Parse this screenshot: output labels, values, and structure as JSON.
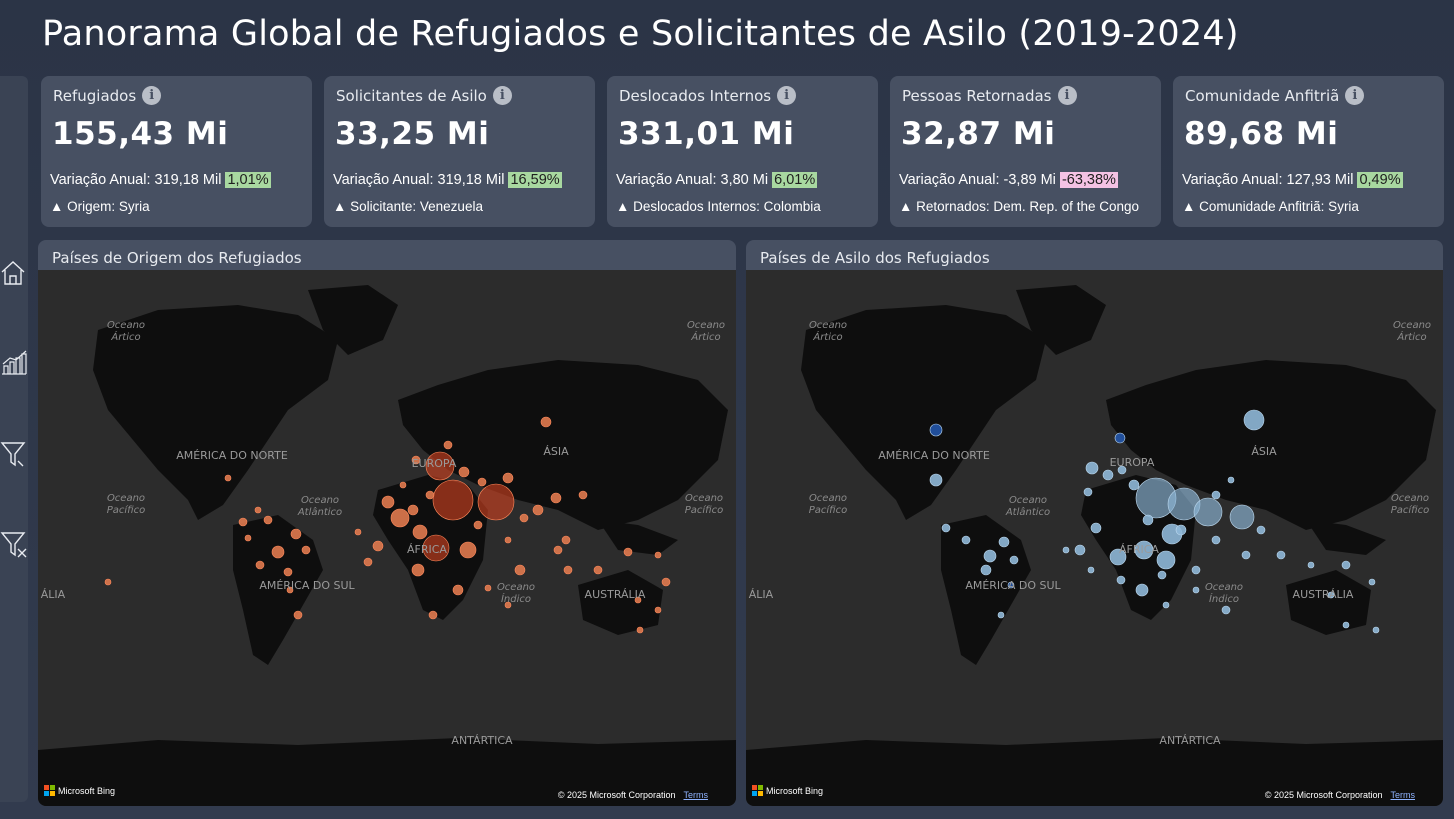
{
  "page": {
    "title": "Panorama Global de Refugiados e Solicitantes de Asilo (2019-2024)"
  },
  "kpis": [
    {
      "title": "Refugiados",
      "value": "155,43 Mi",
      "var_label": "Variação Anual: 319,18 Mil",
      "pct": "1,01%",
      "pct_type": "positive",
      "top_label": "▲ Origem: Syria"
    },
    {
      "title": "Solicitantes de Asilo",
      "value": "33,25 Mi",
      "var_label": "Variação Anual: 319,18 Mil",
      "pct": "16,59%",
      "pct_type": "positive",
      "top_label": "▲ Solicitante: Venezuela"
    },
    {
      "title": "Deslocados Internos",
      "value": "331,01 Mi",
      "var_label": "Variação Anual: 3,80 Mi",
      "pct": "6,01%",
      "pct_type": "positive",
      "top_label": "▲ Deslocados Internos: Colombia"
    },
    {
      "title": "Pessoas Retornadas",
      "value": "32,87 Mi",
      "var_label": "Variação Anual: -3,89 Mi",
      "pct": "-63,38%",
      "pct_type": "negative",
      "top_label": "▲ Retornados: Dem. Rep. of the Congo"
    },
    {
      "title": "Comunidade Anfitriã",
      "value": "89,68 Mi",
      "var_label": "Variação Anual: 127,93 Mil",
      "pct": "0,49%",
      "pct_type": "positive",
      "top_label": "▲ Comunidade Anfitriã: Syria"
    }
  ],
  "maps": [
    {
      "title": "Países de Origem dos Refugiados",
      "bubble_color": "#e07a4f"
    },
    {
      "title": "Países de Asilo dos Refugiados",
      "bubble_color": "#8fb8d8"
    }
  ],
  "map_labels": {
    "oceano_artico": "Oceano Ártico",
    "oceano_pacifico": "Oceano Pacífico",
    "oceano_atlantico": "Oceano Atlântico",
    "oceano_indico": "Oceano Índico",
    "america_norte": "AMÉRICA DO NORTE",
    "america_sul": "AMÉRICA DO SUL",
    "europa": "EUROPA",
    "asia": "ÁSIA",
    "africa": "ÁFRICA",
    "australia": "AUSTRÁLIA",
    "antartica": "ANTÁRTICA",
    "alia": "ÁLIA"
  },
  "map_footer": {
    "brand": "Microsoft Bing",
    "copyright": "© 2025 Microsoft Corporation",
    "terms": "Terms"
  },
  "sidebar": {
    "icons": [
      "home-icon",
      "chart-icon",
      "filter-icon",
      "clear-filter-icon"
    ]
  }
}
